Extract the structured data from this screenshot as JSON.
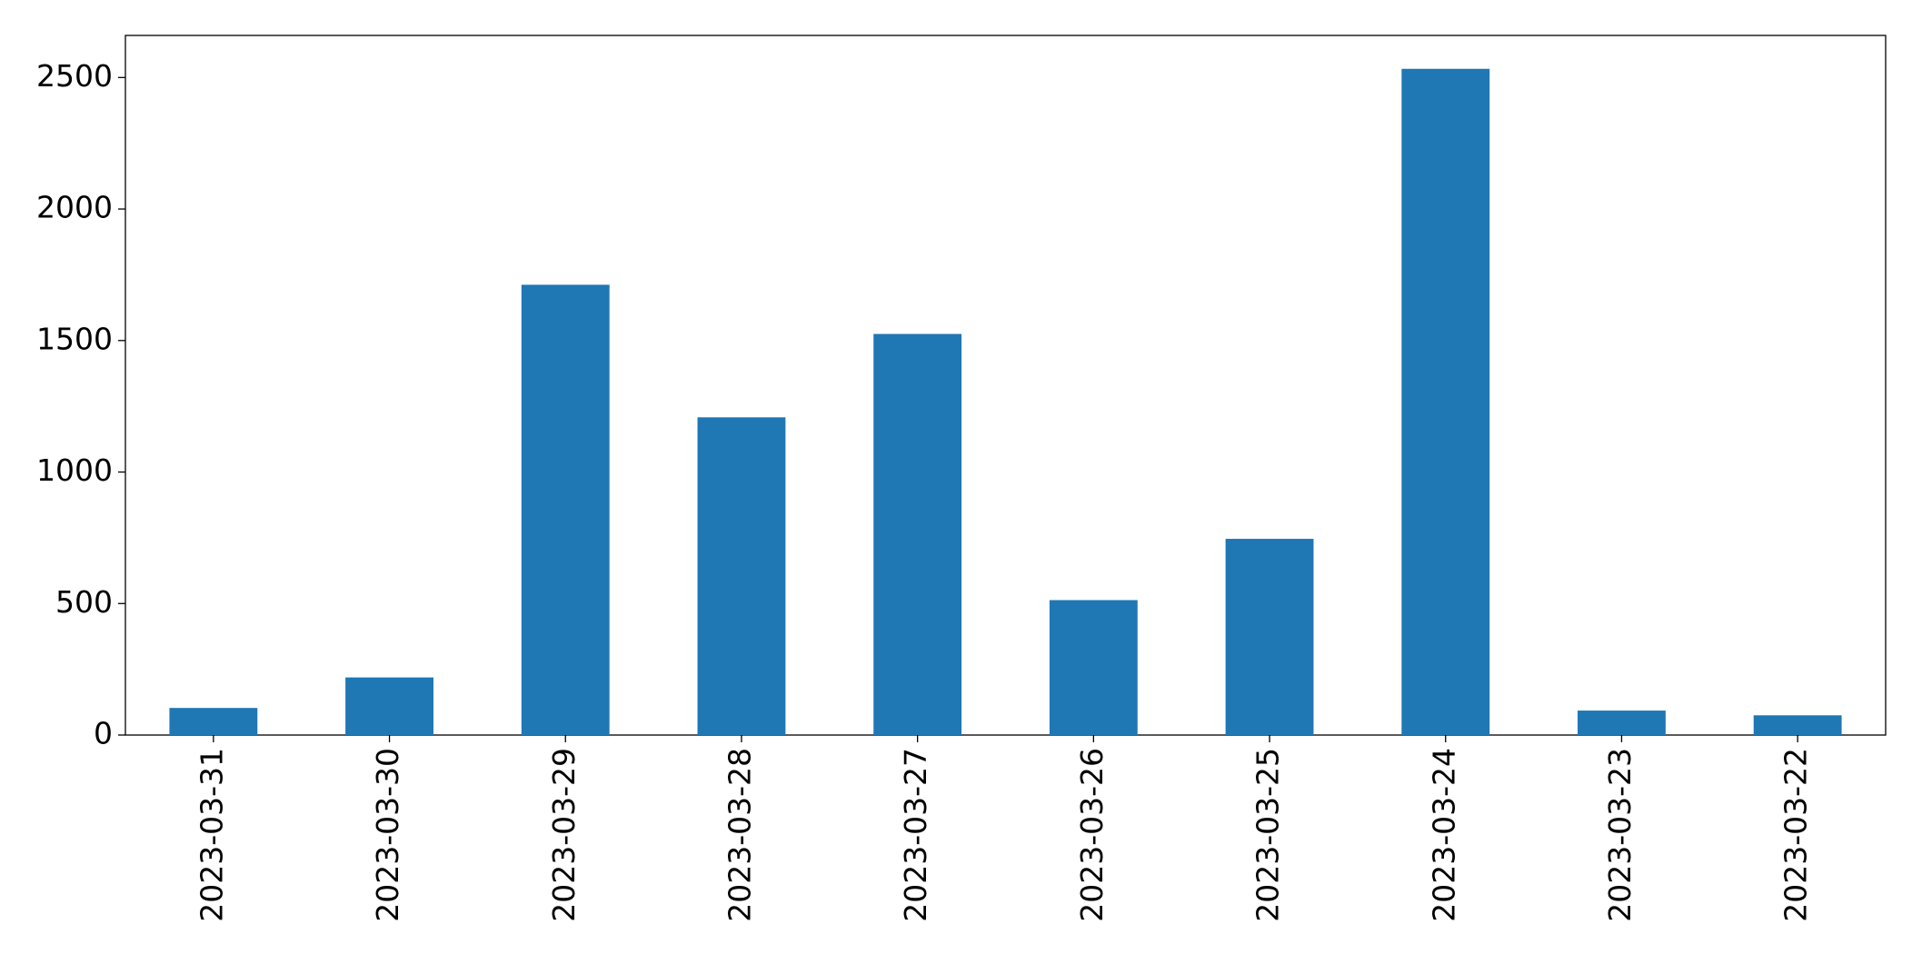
{
  "chart_data": {
    "type": "bar",
    "categories": [
      "2023-03-31",
      "2023-03-30",
      "2023-03-29",
      "2023-03-28",
      "2023-03-27",
      "2023-03-26",
      "2023-03-25",
      "2023-03-24",
      "2023-03-23",
      "2023-03-22"
    ],
    "values": [
      103,
      219,
      1712,
      1208,
      1525,
      513,
      746,
      2533,
      93,
      75
    ],
    "color": "#1f77b4",
    "ylim": [
      0,
      2660
    ],
    "yticks": [
      0,
      500,
      1000,
      1500,
      2000,
      2500
    ],
    "grid": false
  }
}
